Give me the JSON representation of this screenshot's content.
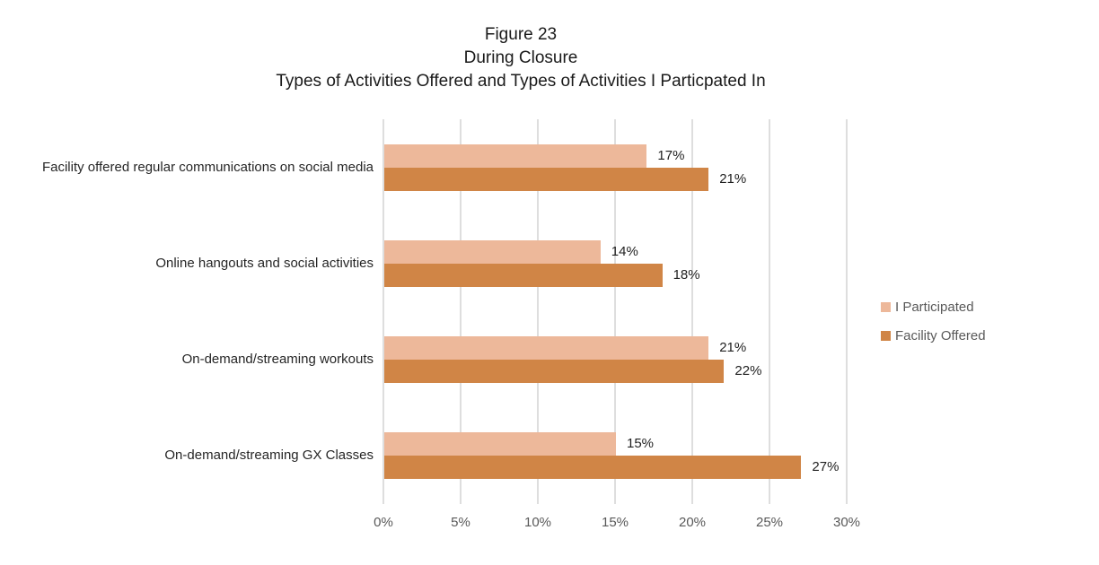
{
  "chart_data": {
    "type": "bar",
    "orientation": "horizontal",
    "title_lines": [
      "Figure 23",
      "During Closure",
      "Types of Activities Offered and Types of Activities I Particpated In"
    ],
    "categories": [
      "Facility offered regular communications on social media",
      "Online hangouts and social activities",
      "On-demand/streaming workouts",
      "On-demand/streaming GX Classes"
    ],
    "series": [
      {
        "name": "I Participated",
        "color": "#EDB89A",
        "values": [
          17,
          14,
          21,
          15
        ]
      },
      {
        "name": "Facility Offered",
        "color": "#D08546",
        "values": [
          21,
          18,
          22,
          27
        ]
      }
    ],
    "value_suffix": "%",
    "x_ticks": [
      "0%",
      "5%",
      "10%",
      "15%",
      "20%",
      "25%",
      "30%"
    ],
    "xlim": [
      0,
      30
    ],
    "grid": true,
    "legend_position": "right",
    "style": {
      "background": "#FFFFFF",
      "gridline_color": "#DEDEDE",
      "axis_text_color": "#595959",
      "value_label_color": "#1F1F1F",
      "category_text_color": "#262626",
      "title_color": "#1A1A1A",
      "legend_text_color": "#595959"
    }
  }
}
